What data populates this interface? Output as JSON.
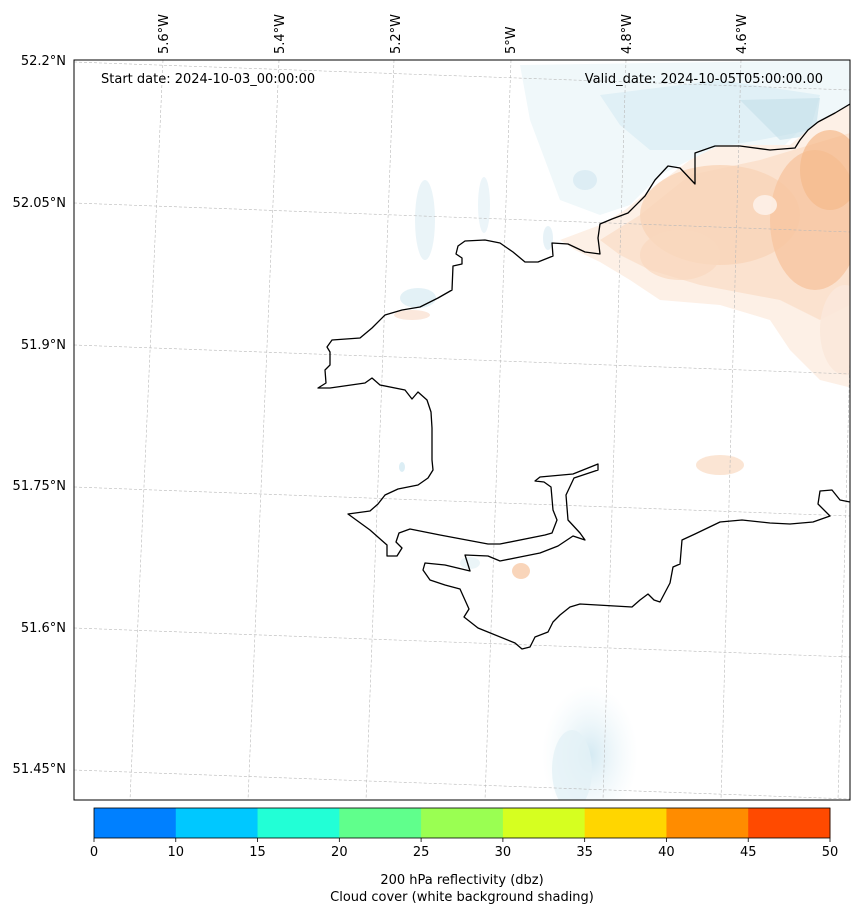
{
  "map": {
    "start_date": "Start date: 2024-10-03_00:00:00",
    "valid_date": "Valid_date: 2024-10-05T05:00:00.00",
    "lat_labels": [
      "52.2°N",
      "52.05°N",
      "51.9°N",
      "51.75°N",
      "51.6°N",
      "51.45°N"
    ],
    "lon_labels": [
      "5.6°W",
      "5.4°W",
      "5.2°W",
      "5°W",
      "4.8°W",
      "4.6°W"
    ],
    "colors": {
      "coastline": "#000000",
      "gridline": "#b8b8b8",
      "cloud_blue": "#d8ecf4",
      "reflectivity_orange": "#f7c9a2"
    }
  },
  "colorbar": {
    "ticks": [
      "0",
      "10",
      "15",
      "20",
      "25",
      "30",
      "35",
      "40",
      "45",
      "50"
    ],
    "colors": [
      "#0080ff",
      "#00c8ff",
      "#22ffd6",
      "#60ff8c",
      "#9aff52",
      "#d6ff20",
      "#ffd600",
      "#ff8c00",
      "#ff4a00"
    ],
    "label_line1": "200 hPa reflectivity (dbz)",
    "label_line2": "Cloud cover (white background shading)"
  }
}
